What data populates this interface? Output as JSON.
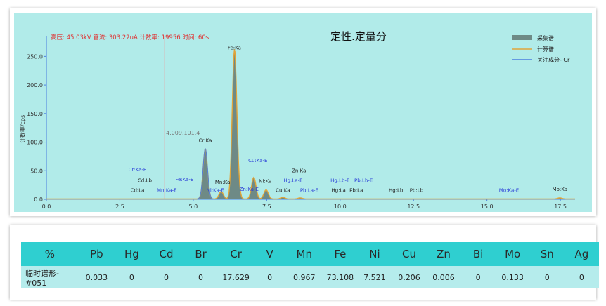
{
  "chart_data": {
    "type": "line",
    "title": "定性.定量分",
    "info_line": "高压: 45.03kV  管流: 303.22uA  计数率: 19956  时间: 60s",
    "ylabel": "计数率/cps",
    "xlim": [
      0,
      18
    ],
    "ylim": [
      0,
      275
    ],
    "x_ticks": [
      "0.0",
      "2.5",
      "5.0",
      "7.5",
      "10.0",
      "12.5",
      "15.0",
      "17.5"
    ],
    "y_ticks": [
      "0.0",
      "50.0",
      "100.0",
      "150.0",
      "200.0",
      "250.0"
    ],
    "cursor": {
      "x": 4.009,
      "y": 101.4,
      "label": "4.009,101.4"
    },
    "legend": [
      "采集谱",
      "计算谱",
      "关注成分- Cr"
    ],
    "legend_position": "top-right",
    "grid": false,
    "colors": {
      "spectrum_fill": "#6e8a86",
      "calc_line": "#e0a43a",
      "focus_line": "#4a7fe0",
      "bg": "#b1ebe9",
      "label_blue": "#2b3fd8",
      "label_black": "#222222",
      "info_red": "#e03030"
    },
    "peaks": [
      {
        "x": 5.41,
        "y": 88
      },
      {
        "x": 5.95,
        "y": 13
      },
      {
        "x": 6.4,
        "y": 248
      },
      {
        "x": 6.49,
        "y": 28
      },
      {
        "x": 7.06,
        "y": 38
      },
      {
        "x": 7.48,
        "y": 16
      },
      {
        "x": 8.05,
        "y": 3
      },
      {
        "x": 8.64,
        "y": 2
      },
      {
        "x": 17.48,
        "y": 2
      }
    ],
    "peak_labels": [
      {
        "text": "Fe:Ka",
        "x": 6.4,
        "y": 262,
        "color": "black"
      },
      {
        "text": "Cr:Ka",
        "x": 5.41,
        "y": 100,
        "color": "black"
      },
      {
        "text": "Cu:Ka-E",
        "x": 7.2,
        "y": 65,
        "color": "blue"
      },
      {
        "text": "Cr:Ka-E",
        "x": 3.1,
        "y": 49,
        "color": "blue"
      },
      {
        "text": "Cd:Lb",
        "x": 3.35,
        "y": 30,
        "color": "black"
      },
      {
        "text": "Fe:Ka-E",
        "x": 4.7,
        "y": 32,
        "color": "blue"
      },
      {
        "text": "Mn:Ka",
        "x": 6.0,
        "y": 27,
        "color": "black"
      },
      {
        "text": "Ni:Ka",
        "x": 7.45,
        "y": 29,
        "color": "black"
      },
      {
        "text": "Zn:Ka",
        "x": 8.6,
        "y": 47,
        "color": "black"
      },
      {
        "text": "Hg:La-E",
        "x": 8.4,
        "y": 30,
        "color": "blue"
      },
      {
        "text": "Hg:Lb-E",
        "x": 10.0,
        "y": 30,
        "color": "blue"
      },
      {
        "text": "Pb:Lb-E",
        "x": 10.8,
        "y": 30,
        "color": "blue"
      },
      {
        "text": "Cd:La",
        "x": 3.1,
        "y": 13,
        "color": "black"
      },
      {
        "text": "Mn:Ka-E",
        "x": 4.1,
        "y": 13,
        "color": "blue"
      },
      {
        "text": "Ni:Ka-E",
        "x": 5.75,
        "y": 13,
        "color": "blue"
      },
      {
        "text": "Zn:Ka-E",
        "x": 6.9,
        "y": 15,
        "color": "blue"
      },
      {
        "text": "Cu:Ka",
        "x": 8.05,
        "y": 13,
        "color": "black"
      },
      {
        "text": "Pb:La-E",
        "x": 8.95,
        "y": 13,
        "color": "blue"
      },
      {
        "text": "Hg:La",
        "x": 9.95,
        "y": 13,
        "color": "black"
      },
      {
        "text": "Pb:La",
        "x": 10.55,
        "y": 13,
        "color": "black"
      },
      {
        "text": "Hg:Lb",
        "x": 11.9,
        "y": 13,
        "color": "black"
      },
      {
        "text": "Pb:Lb",
        "x": 12.6,
        "y": 13,
        "color": "black"
      },
      {
        "text": "Mo:Ka-E",
        "x": 15.75,
        "y": 13,
        "color": "blue"
      },
      {
        "text": "Mo:Ka",
        "x": 17.48,
        "y": 15,
        "color": "black"
      }
    ]
  },
  "table": {
    "headers": [
      "%",
      "Pb",
      "Hg",
      "Cd",
      "Br",
      "Cr",
      "V",
      "Mn",
      "Fe",
      "Ni",
      "Cu",
      "Zn",
      "Bi",
      "Mo",
      "Sn",
      "Ag"
    ],
    "row": [
      "临时谱形-#051",
      "0.033",
      "0",
      "0",
      "0",
      "17.629",
      "0",
      "0.967",
      "73.108",
      "7.521",
      "0.206",
      "0.006",
      "0",
      "0.133",
      "0",
      "0"
    ]
  }
}
